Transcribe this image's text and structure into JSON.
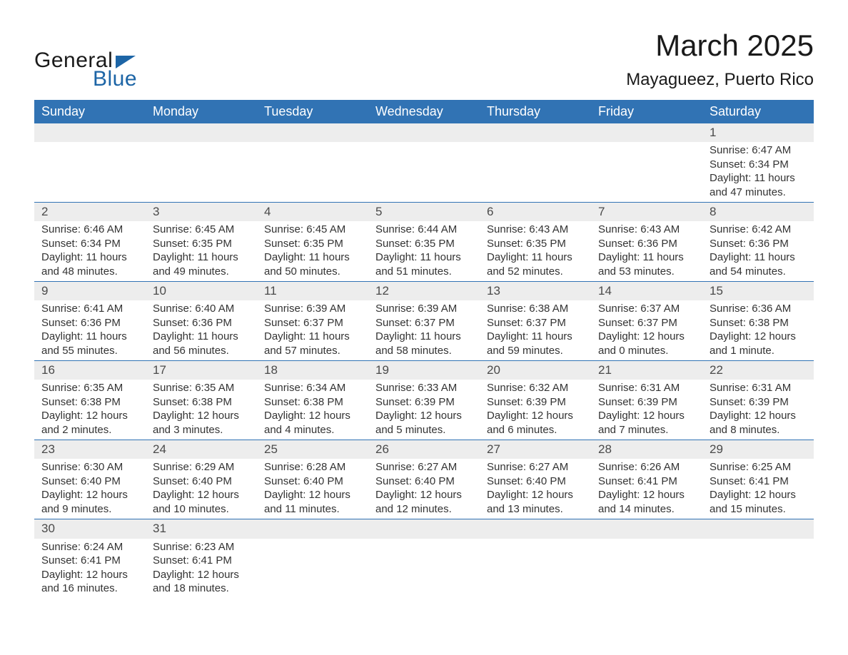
{
  "logo": {
    "text_top": "General",
    "text_bottom": "Blue"
  },
  "title": {
    "month": "March 2025",
    "location": "Mayagueez, Puerto Rico"
  },
  "colors": {
    "header_bg": "#3173b4",
    "header_text": "#ffffff",
    "daynum_bg": "#ededed",
    "border": "#3173b4",
    "text": "#333333",
    "logo_dark": "#1a1a1a",
    "logo_blue": "#1d65a6"
  },
  "weekdays": [
    "Sunday",
    "Monday",
    "Tuesday",
    "Wednesday",
    "Thursday",
    "Friday",
    "Saturday"
  ],
  "weeks": [
    {
      "nums": [
        "",
        "",
        "",
        "",
        "",
        "",
        "1"
      ],
      "cells": [
        [],
        [],
        [],
        [],
        [],
        [],
        [
          "Sunrise: 6:47 AM",
          "Sunset: 6:34 PM",
          "Daylight: 11 hours",
          "and 47 minutes."
        ]
      ]
    },
    {
      "nums": [
        "2",
        "3",
        "4",
        "5",
        "6",
        "7",
        "8"
      ],
      "cells": [
        [
          "Sunrise: 6:46 AM",
          "Sunset: 6:34 PM",
          "Daylight: 11 hours",
          "and 48 minutes."
        ],
        [
          "Sunrise: 6:45 AM",
          "Sunset: 6:35 PM",
          "Daylight: 11 hours",
          "and 49 minutes."
        ],
        [
          "Sunrise: 6:45 AM",
          "Sunset: 6:35 PM",
          "Daylight: 11 hours",
          "and 50 minutes."
        ],
        [
          "Sunrise: 6:44 AM",
          "Sunset: 6:35 PM",
          "Daylight: 11 hours",
          "and 51 minutes."
        ],
        [
          "Sunrise: 6:43 AM",
          "Sunset: 6:35 PM",
          "Daylight: 11 hours",
          "and 52 minutes."
        ],
        [
          "Sunrise: 6:43 AM",
          "Sunset: 6:36 PM",
          "Daylight: 11 hours",
          "and 53 minutes."
        ],
        [
          "Sunrise: 6:42 AM",
          "Sunset: 6:36 PM",
          "Daylight: 11 hours",
          "and 54 minutes."
        ]
      ]
    },
    {
      "nums": [
        "9",
        "10",
        "11",
        "12",
        "13",
        "14",
        "15"
      ],
      "cells": [
        [
          "Sunrise: 6:41 AM",
          "Sunset: 6:36 PM",
          "Daylight: 11 hours",
          "and 55 minutes."
        ],
        [
          "Sunrise: 6:40 AM",
          "Sunset: 6:36 PM",
          "Daylight: 11 hours",
          "and 56 minutes."
        ],
        [
          "Sunrise: 6:39 AM",
          "Sunset: 6:37 PM",
          "Daylight: 11 hours",
          "and 57 minutes."
        ],
        [
          "Sunrise: 6:39 AM",
          "Sunset: 6:37 PM",
          "Daylight: 11 hours",
          "and 58 minutes."
        ],
        [
          "Sunrise: 6:38 AM",
          "Sunset: 6:37 PM",
          "Daylight: 11 hours",
          "and 59 minutes."
        ],
        [
          "Sunrise: 6:37 AM",
          "Sunset: 6:37 PM",
          "Daylight: 12 hours",
          "and 0 minutes."
        ],
        [
          "Sunrise: 6:36 AM",
          "Sunset: 6:38 PM",
          "Daylight: 12 hours",
          "and 1 minute."
        ]
      ]
    },
    {
      "nums": [
        "16",
        "17",
        "18",
        "19",
        "20",
        "21",
        "22"
      ],
      "cells": [
        [
          "Sunrise: 6:35 AM",
          "Sunset: 6:38 PM",
          "Daylight: 12 hours",
          "and 2 minutes."
        ],
        [
          "Sunrise: 6:35 AM",
          "Sunset: 6:38 PM",
          "Daylight: 12 hours",
          "and 3 minutes."
        ],
        [
          "Sunrise: 6:34 AM",
          "Sunset: 6:38 PM",
          "Daylight: 12 hours",
          "and 4 minutes."
        ],
        [
          "Sunrise: 6:33 AM",
          "Sunset: 6:39 PM",
          "Daylight: 12 hours",
          "and 5 minutes."
        ],
        [
          "Sunrise: 6:32 AM",
          "Sunset: 6:39 PM",
          "Daylight: 12 hours",
          "and 6 minutes."
        ],
        [
          "Sunrise: 6:31 AM",
          "Sunset: 6:39 PM",
          "Daylight: 12 hours",
          "and 7 minutes."
        ],
        [
          "Sunrise: 6:31 AM",
          "Sunset: 6:39 PM",
          "Daylight: 12 hours",
          "and 8 minutes."
        ]
      ]
    },
    {
      "nums": [
        "23",
        "24",
        "25",
        "26",
        "27",
        "28",
        "29"
      ],
      "cells": [
        [
          "Sunrise: 6:30 AM",
          "Sunset: 6:40 PM",
          "Daylight: 12 hours",
          "and 9 minutes."
        ],
        [
          "Sunrise: 6:29 AM",
          "Sunset: 6:40 PM",
          "Daylight: 12 hours",
          "and 10 minutes."
        ],
        [
          "Sunrise: 6:28 AM",
          "Sunset: 6:40 PM",
          "Daylight: 12 hours",
          "and 11 minutes."
        ],
        [
          "Sunrise: 6:27 AM",
          "Sunset: 6:40 PM",
          "Daylight: 12 hours",
          "and 12 minutes."
        ],
        [
          "Sunrise: 6:27 AM",
          "Sunset: 6:40 PM",
          "Daylight: 12 hours",
          "and 13 minutes."
        ],
        [
          "Sunrise: 6:26 AM",
          "Sunset: 6:41 PM",
          "Daylight: 12 hours",
          "and 14 minutes."
        ],
        [
          "Sunrise: 6:25 AM",
          "Sunset: 6:41 PM",
          "Daylight: 12 hours",
          "and 15 minutes."
        ]
      ]
    },
    {
      "nums": [
        "30",
        "31",
        "",
        "",
        "",
        "",
        ""
      ],
      "cells": [
        [
          "Sunrise: 6:24 AM",
          "Sunset: 6:41 PM",
          "Daylight: 12 hours",
          "and 16 minutes."
        ],
        [
          "Sunrise: 6:23 AM",
          "Sunset: 6:41 PM",
          "Daylight: 12 hours",
          "and 18 minutes."
        ],
        [],
        [],
        [],
        [],
        []
      ]
    }
  ]
}
